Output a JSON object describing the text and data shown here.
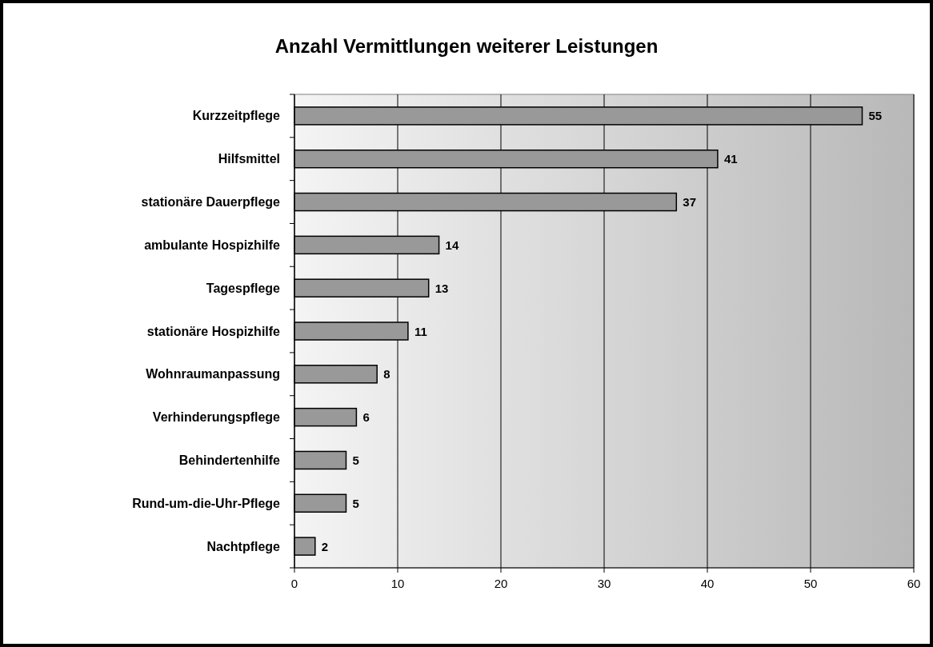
{
  "chart_data": {
    "type": "bar",
    "orientation": "horizontal",
    "title": "Anzahl Vermittlungen weiterer Leistungen",
    "categories": [
      "Kurzzeitpflege",
      "Hilfsmittel",
      "stationäre Dauerpflege",
      "ambulante Hospizhilfe",
      "Tagespflege",
      "stationäre Hospizhilfe",
      "Wohnraumanpassung",
      "Verhinderungspflege",
      "Behindertenhilfe",
      "Rund-um-die-Uhr-Pflege",
      "Nachtpflege"
    ],
    "values": [
      55,
      41,
      37,
      14,
      13,
      11,
      8,
      6,
      5,
      5,
      2
    ],
    "color": "#999999",
    "xlim": [
      0,
      60
    ],
    "xticks": [
      0,
      10,
      20,
      30,
      40,
      50,
      60
    ],
    "grid": "x",
    "data_labels": true
  }
}
